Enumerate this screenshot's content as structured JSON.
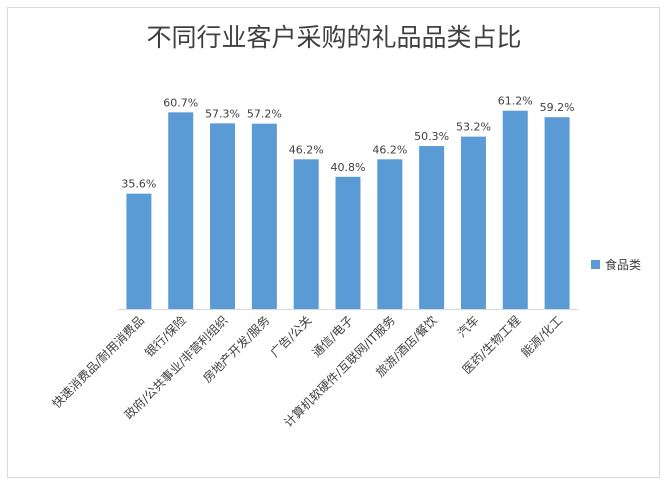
{
  "chart_data": {
    "type": "bar",
    "title": "不同行业客户采购的礼品品类占比",
    "categories": [
      "快速消费品/耐用消费品",
      "银行/保险",
      "政府/公共事业/非营利组织",
      "房地产开发/服务",
      "广告/公关",
      "通信/电子",
      "计算机软硬件/互联网/IT服务",
      "旅游/酒店/餐饮",
      "汽车",
      "医药/生物工程",
      "能源/化工"
    ],
    "series": [
      {
        "name": "食品类",
        "values": [
          35.6,
          60.7,
          57.3,
          57.2,
          46.2,
          40.8,
          46.2,
          50.3,
          53.2,
          61.2,
          59.2
        ],
        "labels": [
          "35.6%",
          "60.7%",
          "57.3%",
          "57.2%",
          "46.2%",
          "40.8%",
          "46.2%",
          "50.3%",
          "53.2%",
          "61.2%",
          "59.2%"
        ],
        "color": "#5b9bd5"
      }
    ],
    "xlabel": "",
    "ylabel": "",
    "ylim": [
      0,
      70
    ],
    "grid": false,
    "legend_position": "right"
  }
}
